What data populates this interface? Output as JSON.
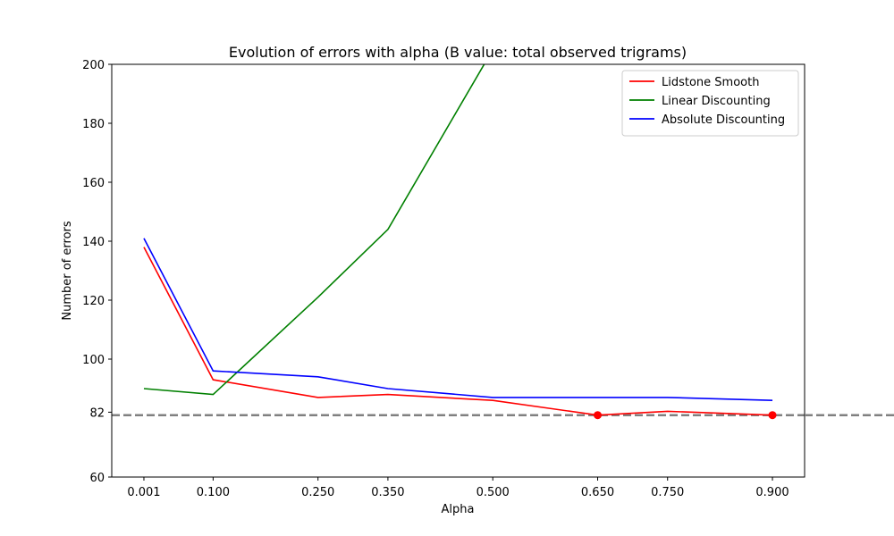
{
  "chart_data": {
    "type": "line",
    "title": "Evolution of errors with alpha (B value: total observed trigrams)",
    "xlabel": "Alpha",
    "ylabel": "Number of errors",
    "x": [
      0.001,
      0.1,
      0.25,
      0.35,
      0.5,
      0.65,
      0.75,
      0.9
    ],
    "x_tick_labels": [
      "0.001",
      "0.100",
      "0.250",
      "0.350",
      "0.500",
      "0.650",
      "0.750",
      "0.900"
    ],
    "xlim": [
      -0.045,
      0.946
    ],
    "ylim": [
      60,
      200
    ],
    "y_ticks": [
      60,
      82,
      100,
      120,
      140,
      160,
      180,
      200
    ],
    "legend_position": "top-right",
    "grid": false,
    "series": [
      {
        "name": "Lidstone Smooth",
        "color": "#ff0000",
        "values": [
          138,
          93,
          87,
          88,
          86,
          81,
          82.3,
          81
        ],
        "markers": [
          {
            "x": 0.65,
            "y": 81
          },
          {
            "x": 0.9,
            "y": 81
          }
        ]
      },
      {
        "name": "Linear Discounting",
        "color": "#008000",
        "values": [
          90,
          88,
          121,
          144,
          205,
          205,
          205,
          205
        ]
      },
      {
        "name": "Absolute Discounting",
        "color": "#0000ff",
        "values": [
          141,
          96,
          94,
          90,
          87,
          87,
          87,
          86
        ]
      }
    ],
    "reference_line": {
      "y": 81,
      "color": "#808080",
      "style": "dashed"
    }
  }
}
